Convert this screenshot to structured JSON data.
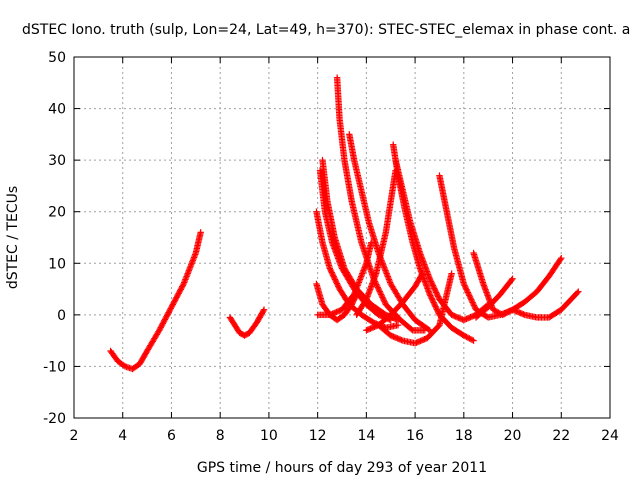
{
  "chart_data": {
    "type": "scatter",
    "title": "dSTEC Iono. truth (sulp, Lon=24, Lat=49, h=370): STEC-STEC_elemax in phase cont. a",
    "xlabel": "GPS time / hours of day 293 of year 2011",
    "ylabel": "dSTEC  / TECUs",
    "xlim": [
      2,
      24
    ],
    "ylim": [
      -20,
      50
    ],
    "xticks": [
      2,
      4,
      6,
      8,
      10,
      12,
      14,
      16,
      18,
      20,
      22,
      24
    ],
    "yticks": [
      -20,
      -10,
      0,
      10,
      20,
      30,
      40,
      50
    ],
    "grid": true,
    "marker": "+",
    "color": "#ff0000",
    "series": [
      {
        "x": [
          3.5,
          3.8,
          4.1,
          4.4,
          4.7,
          5.0,
          5.5,
          6.0,
          6.5,
          7.0,
          7.2
        ],
        "y": [
          -7,
          -9,
          -10,
          -10.5,
          -9.5,
          -7,
          -3,
          1.5,
          6,
          12,
          16
        ]
      },
      {
        "x": [
          8.4,
          8.6,
          8.8,
          9.0,
          9.2,
          9.5,
          9.8
        ],
        "y": [
          -0.5,
          -2,
          -3.5,
          -4,
          -3.5,
          -1.5,
          1
        ]
      },
      {
        "x": [
          11.95,
          12.2,
          12.5,
          12.8,
          13.1,
          13.4,
          13.6
        ],
        "y": [
          6,
          2,
          0,
          -1,
          0,
          2,
          4
        ]
      },
      {
        "x": [
          11.95,
          12.2,
          12.5,
          12.9,
          13.3,
          13.8,
          14.3,
          14.8,
          15.3
        ],
        "y": [
          20,
          14,
          9,
          5,
          2,
          0,
          -1.5,
          -2.5,
          -2
        ]
      },
      {
        "x": [
          12.1,
          12.3,
          12.6,
          13.0,
          13.5,
          14.0,
          14.5,
          15.0
        ],
        "y": [
          28,
          20,
          14,
          9,
          5,
          2,
          0,
          -1
        ]
      },
      {
        "x": [
          12.2,
          12.4,
          12.7,
          13.1,
          13.6,
          14.2,
          14.8,
          15.3
        ],
        "y": [
          30,
          22,
          15,
          9,
          5,
          2,
          0,
          -1
        ]
      },
      {
        "x": [
          12.0,
          12.5,
          13.0,
          13.5,
          14.0,
          14.2
        ],
        "y": [
          0,
          0,
          1,
          4,
          10,
          14
        ]
      },
      {
        "x": [
          12.8,
          12.9,
          13.1,
          13.4,
          13.8,
          14.3,
          14.8,
          15.4,
          15.9,
          16.4
        ],
        "y": [
          46,
          38,
          30,
          22,
          14,
          7,
          2,
          -1,
          -3,
          -3
        ]
      },
      {
        "x": [
          13.3,
          13.5,
          13.8,
          14.1,
          14.5,
          15.0,
          15.5,
          16.0,
          16.6
        ],
        "y": [
          35,
          30,
          24,
          18,
          12,
          6,
          2,
          -1,
          -3
        ]
      },
      {
        "x": [
          13.6,
          14.0,
          14.4,
          14.8,
          15.2
        ],
        "y": [
          0,
          3,
          8,
          16,
          28
        ]
      },
      {
        "x": [
          15.1,
          15.3,
          15.6,
          15.9,
          16.2,
          16.6,
          17.0,
          17.5,
          18.0,
          18.4
        ],
        "y": [
          33,
          27,
          20,
          14,
          9,
          4,
          0,
          -2.5,
          -4,
          -5
        ]
      },
      {
        "x": [
          15.2,
          15.5,
          15.8,
          16.2,
          16.6,
          17.0,
          17.5,
          18.0,
          18.5,
          19.0
        ],
        "y": [
          30,
          24,
          18,
          12,
          7,
          3,
          0,
          -1,
          0,
          2
        ]
      },
      {
        "x": [
          14.5,
          15.0,
          15.5,
          16.0,
          16.5,
          17.0,
          17.5
        ],
        "y": [
          -2,
          -4,
          -5,
          -5.5,
          -4.5,
          -2,
          8
        ]
      },
      {
        "x": [
          14.0,
          14.5,
          15.0,
          15.5,
          16.0,
          16.3
        ],
        "y": [
          -3,
          -2,
          0,
          2.5,
          5.5,
          8
        ]
      },
      {
        "x": [
          17.0,
          17.3,
          17.6,
          18.0,
          18.5,
          19.0,
          19.5,
          20.0,
          20.5,
          21.0,
          21.5,
          22.0
        ],
        "y": [
          27,
          20,
          13,
          6,
          1,
          -0.5,
          0,
          1,
          2.5,
          4.5,
          7.5,
          11
        ]
      },
      {
        "x": [
          18.4,
          18.8,
          19.2,
          19.6,
          20.0,
          20.5,
          21.0,
          21.5,
          22.0,
          22.7
        ],
        "y": [
          12,
          6,
          1,
          0,
          1,
          0,
          -0.5,
          -0.5,
          1,
          4.5
        ]
      },
      {
        "x": [
          18.5,
          19.0,
          19.5,
          20.0
        ],
        "y": [
          -0.5,
          1.5,
          4,
          7
        ]
      }
    ]
  }
}
